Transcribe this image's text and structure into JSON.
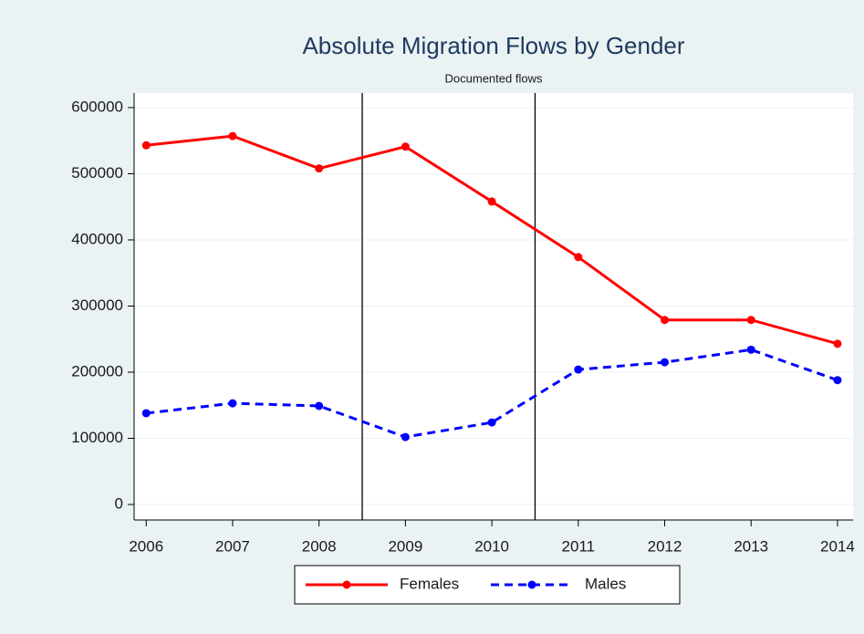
{
  "chart_data": {
    "type": "line",
    "title": "Absolute Migration Flows by Gender",
    "subtitle": "Documented flows",
    "x": [
      2006,
      2007,
      2008,
      2009,
      2010,
      2011,
      2012,
      2013,
      2014
    ],
    "series": [
      {
        "name": "Females",
        "color": "#ff0000",
        "dash": "solid",
        "values": [
          543000,
          557000,
          508000,
          541000,
          458000,
          374000,
          279000,
          279000,
          243000
        ]
      },
      {
        "name": "Males",
        "color": "#0000ff",
        "dash": "dashed",
        "values": [
          138000,
          153000,
          149000,
          102000,
          124000,
          204000,
          215000,
          234000,
          188000
        ]
      }
    ],
    "xlim": [
      2005.86,
      2014.18
    ],
    "xticks": [
      2006,
      2007,
      2008,
      2009,
      2010,
      2011,
      2012,
      2013,
      2014
    ],
    "ylim": [
      -23400,
      622000
    ],
    "yticks": [
      0,
      100000,
      200000,
      300000,
      400000,
      500000,
      600000
    ],
    "reference_lines": [
      2008.5,
      2010.5
    ],
    "grid": true,
    "legend": "bottom"
  }
}
